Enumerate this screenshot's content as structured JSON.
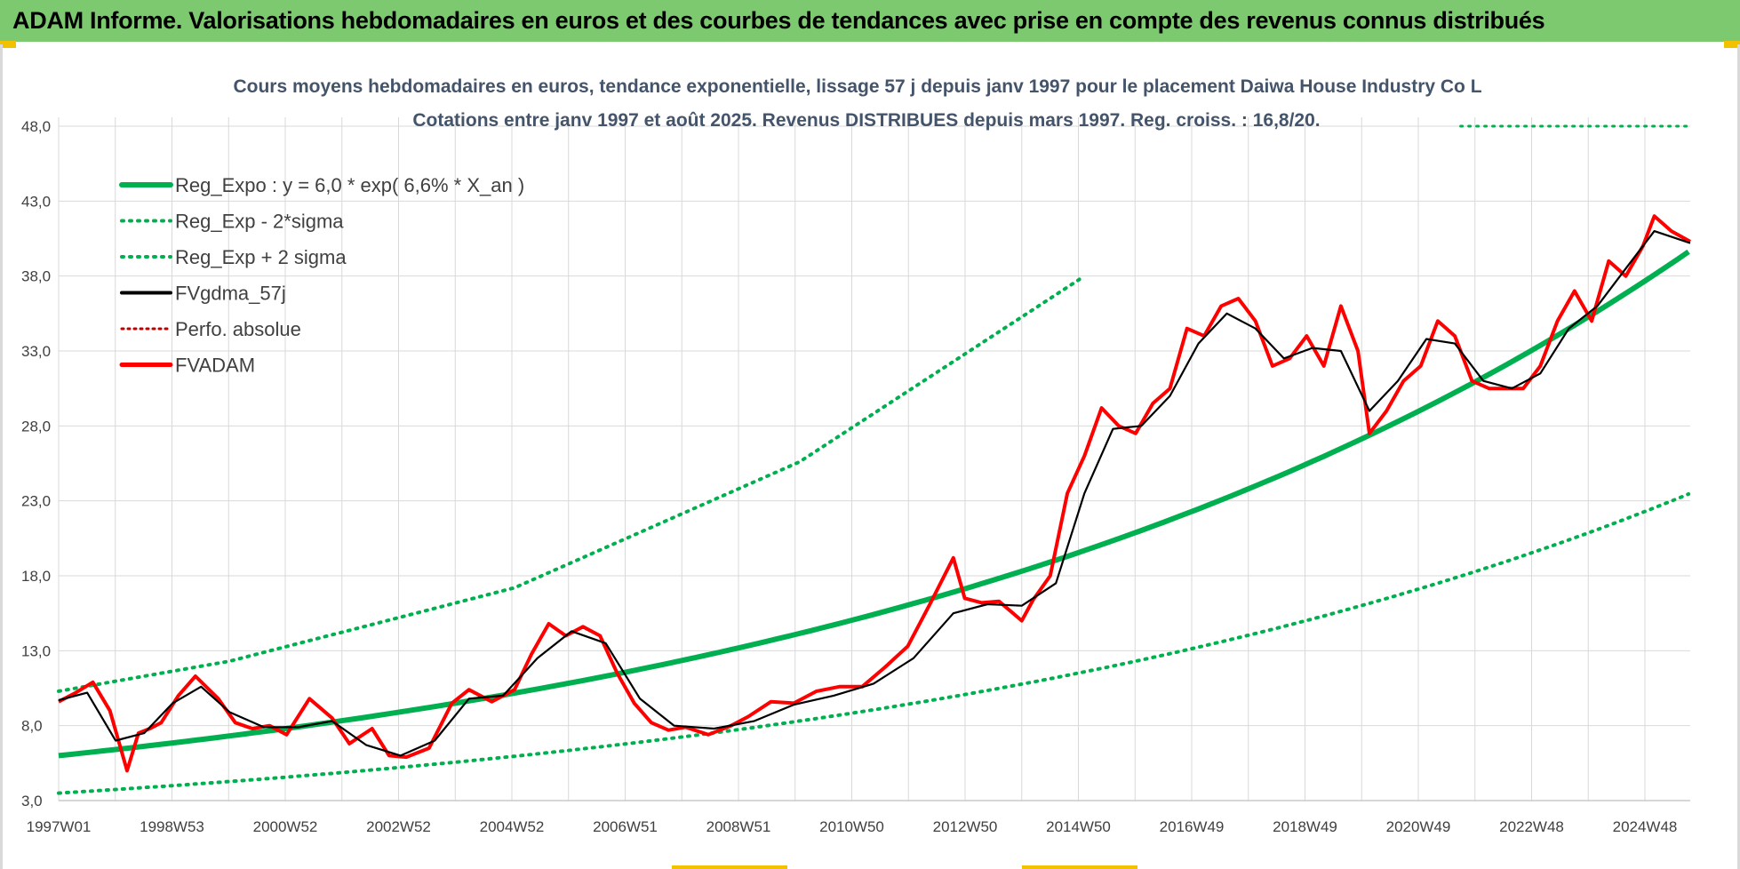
{
  "header": {
    "title": "ADAM Informe. Valorisations hebdomadaires en euros et des courbes de tendances avec prise en compte des revenus connus distribués"
  },
  "colors": {
    "banner": "#7cc96f",
    "trend": "#00b050",
    "fvadam": "#ff0000",
    "fvgdma": "#000000",
    "perfo": "#c00000",
    "grid": "#d9d9d9"
  },
  "chart_data": {
    "type": "line",
    "title": "Cours moyens hebdomadaires en euros, tendance exponentielle, lissage 57 j depuis janv 1997 pour le placement Daiwa House Industry Co L",
    "subtitle": "Cotations entre janv 1997 et août 2025. Revenus DISTRIBUES depuis mars 1997. Reg. croiss. : 16,8/20.",
    "xlabel": "",
    "ylabel": "",
    "ylim": [
      3,
      48
    ],
    "y_ticks": [
      "3,0",
      "8,0",
      "13,0",
      "18,0",
      "23,0",
      "28,0",
      "33,0",
      "38,0",
      "43,0",
      "48,0"
    ],
    "x_ticks": [
      "1997W01",
      "1998W53",
      "2000W52",
      "2002W52",
      "2004W52",
      "2006W51",
      "2008W51",
      "2010W50",
      "2012W50",
      "2014W50",
      "2016W49",
      "2018W49",
      "2020W49",
      "2022W48",
      "2024W48"
    ],
    "x_range": [
      1997.0,
      2025.63
    ],
    "grid": "vertical and horizontal",
    "legend_position": "top-left",
    "trend_formula": {
      "a": 6.0,
      "rate": 0.066
    },
    "series": [
      {
        "name": "Reg_Expo : y = 6,0 * exp( 6,6% *  X_an )",
        "style": "solid",
        "color": "#00b050"
      },
      {
        "name": "Reg_Exp - 2*sigma",
        "style": "dotted",
        "color": "#00b050"
      },
      {
        "name": "Reg_Exp + 2 sigma",
        "style": "dotted",
        "color": "#00b050"
      },
      {
        "name": "FVgdma_57j",
        "style": "solid",
        "color": "#000000"
      },
      {
        "name": "Perfo. absolue",
        "style": "dotted",
        "color": "#c00000"
      },
      {
        "name": "FVADAM",
        "style": "solid",
        "color": "#ff0000"
      }
    ],
    "trend_lower": {
      "x": [
        1997.0,
        2025.63
      ],
      "y": [
        3.5,
        23.5
      ]
    },
    "trend_upper": {
      "x": [
        1997.0,
        2000.0,
        2005.0,
        2010.0,
        2015.0
      ],
      "y": [
        10.3,
        12.3,
        17.2,
        25.6,
        38.0
      ]
    },
    "trend_upper_legend_stub": {
      "x": [
        2021.6,
        2025.63
      ],
      "y": [
        48.0,
        48.0
      ]
    },
    "fvadam": {
      "x": [
        1997.0,
        1997.3,
        1997.6,
        1997.9,
        1998.2,
        1998.4,
        1998.6,
        1998.8,
        1999.1,
        1999.4,
        1999.8,
        2000.1,
        2000.4,
        2000.7,
        2001.0,
        2001.4,
        2001.8,
        2002.1,
        2002.5,
        2002.8,
        2003.1,
        2003.5,
        2003.9,
        2004.2,
        2004.6,
        2005.0,
        2005.3,
        2005.6,
        2005.9,
        2006.2,
        2006.5,
        2006.8,
        2007.1,
        2007.4,
        2007.7,
        2008.0,
        2008.4,
        2008.8,
        2009.1,
        2009.5,
        2009.9,
        2010.3,
        2010.7,
        2011.1,
        2011.5,
        2011.9,
        2012.3,
        2012.7,
        2012.9,
        2013.2,
        2013.5,
        2013.9,
        2014.1,
        2014.4,
        2014.7,
        2015.0,
        2015.3,
        2015.6,
        2015.9,
        2016.2,
        2016.5,
        2016.8,
        2017.1,
        2017.4,
        2017.7,
        2018.0,
        2018.3,
        2018.6,
        2018.9,
        2019.2,
        2019.5,
        2019.8,
        2020.0,
        2020.3,
        2020.6,
        2020.9,
        2021.2,
        2021.5,
        2021.8,
        2022.1,
        2022.4,
        2022.7,
        2023.0,
        2023.3,
        2023.6,
        2023.9,
        2024.2,
        2024.5,
        2024.8,
        2025.0,
        2025.3,
        2025.63
      ],
      "y": [
        9.6,
        10.2,
        10.9,
        9.0,
        5.0,
        7.5,
        7.8,
        8.2,
        10.0,
        11.3,
        9.8,
        8.2,
        7.8,
        8.0,
        7.4,
        9.8,
        8.5,
        6.8,
        7.8,
        6.0,
        5.9,
        6.5,
        9.5,
        10.4,
        9.6,
        10.4,
        12.8,
        14.8,
        14.0,
        14.6,
        14.0,
        11.5,
        9.5,
        8.2,
        7.7,
        7.9,
        7.4,
        8.0,
        8.6,
        9.6,
        9.5,
        10.3,
        10.6,
        10.6,
        11.9,
        13.3,
        16.2,
        19.2,
        16.5,
        16.2,
        16.3,
        15.0,
        16.4,
        18.0,
        23.5,
        26.0,
        29.2,
        28.0,
        27.5,
        29.5,
        30.5,
        34.5,
        34.0,
        36.0,
        36.5,
        35.0,
        32.0,
        32.5,
        34.0,
        32.0,
        36.0,
        33.0,
        27.5,
        29.0,
        31.0,
        32.0,
        35.0,
        34.0,
        31.0,
        30.5,
        30.5,
        30.5,
        32.0,
        35.0,
        37.0,
        35.0,
        39.0,
        38.0,
        40.0,
        42.0,
        41.0,
        40.3
      ]
    },
    "fvgdma_57j": {
      "x": [
        1997.0,
        1997.5,
        1998.0,
        1998.5,
        1999.0,
        1999.5,
        2000.0,
        2000.6,
        2001.2,
        2001.8,
        2002.4,
        2003.0,
        2003.6,
        2004.2,
        2004.8,
        2005.4,
        2006.0,
        2006.6,
        2007.2,
        2007.8,
        2008.5,
        2009.2,
        2009.9,
        2010.6,
        2011.3,
        2012.0,
        2012.7,
        2013.3,
        2013.9,
        2014.5,
        2015.0,
        2015.5,
        2016.0,
        2016.5,
        2017.0,
        2017.5,
        2018.0,
        2018.5,
        2019.0,
        2019.5,
        2020.0,
        2020.5,
        2021.0,
        2021.5,
        2022.0,
        2022.5,
        2023.0,
        2023.5,
        2024.0,
        2024.5,
        2025.0,
        2025.63
      ],
      "y": [
        9.7,
        10.2,
        7.0,
        7.5,
        9.5,
        10.6,
        8.9,
        7.9,
        7.9,
        8.3,
        6.7,
        6.0,
        7.0,
        9.8,
        10.0,
        12.5,
        14.3,
        13.5,
        9.8,
        8.0,
        7.8,
        8.3,
        9.4,
        10.0,
        10.8,
        12.5,
        15.5,
        16.1,
        16.0,
        17.5,
        23.5,
        27.8,
        28.0,
        30.0,
        33.5,
        35.5,
        34.5,
        32.5,
        33.2,
        33.0,
        29.0,
        31.0,
        33.8,
        33.5,
        31.0,
        30.5,
        31.5,
        34.5,
        36.0,
        38.5,
        41.0,
        40.2
      ]
    }
  }
}
